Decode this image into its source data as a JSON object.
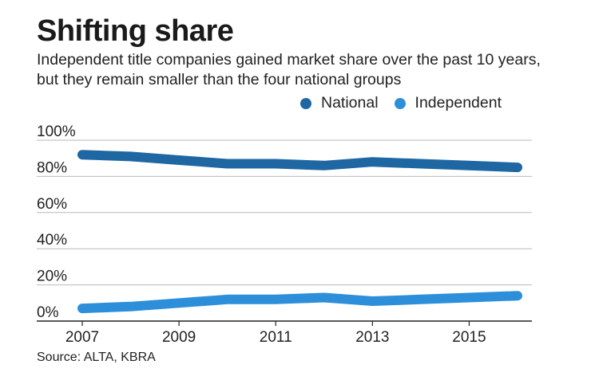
{
  "title": "Shifting share",
  "subtitle": "Independent title companies gained market share over the past 10 years, but they remain smaller than the four national groups",
  "source": "Source: ALTA, KBRA",
  "colors": {
    "national": "#1f67a3",
    "independent": "#2d8fd9",
    "grid": "#b9b9b9",
    "axis": "#222222"
  },
  "chart_data": {
    "type": "line",
    "x": [
      2007,
      2008,
      2009,
      2010,
      2011,
      2012,
      2013,
      2014,
      2015,
      2016
    ],
    "series": [
      {
        "name": "National",
        "values": [
          92,
          91,
          89,
          87,
          87,
          86,
          88,
          87,
          86,
          85
        ]
      },
      {
        "name": "Independent",
        "values": [
          7,
          8,
          10,
          12,
          12,
          13,
          11,
          12,
          13,
          14
        ]
      }
    ],
    "y_ticks": [
      "0%",
      "20%",
      "40%",
      "60%",
      "80%",
      "100%"
    ],
    "y_tick_values": [
      0,
      20,
      40,
      60,
      80,
      100
    ],
    "x_ticks": [
      2007,
      2009,
      2011,
      2013,
      2015
    ],
    "ylim": [
      0,
      100
    ],
    "xlim": [
      2007,
      2016
    ],
    "grid": true,
    "legend": "top-right"
  }
}
